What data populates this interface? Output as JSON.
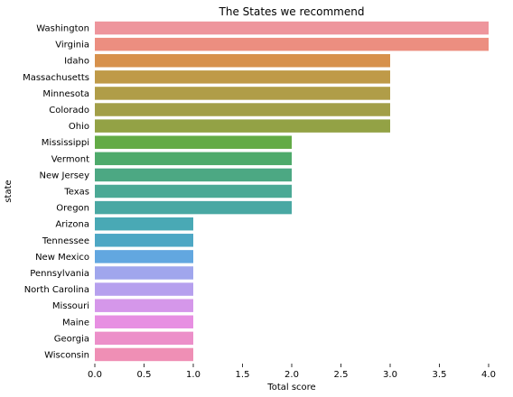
{
  "chart_data": {
    "type": "bar",
    "orientation": "horizontal",
    "title": "The States we recommend",
    "xlabel": "Total score",
    "ylabel": "state",
    "xlim": [
      0.0,
      4.0
    ],
    "xticks": [
      "0.0",
      "0.5",
      "1.0",
      "1.5",
      "2.0",
      "2.5",
      "3.0",
      "3.5",
      "4.0"
    ],
    "grid": false,
    "legend": "none",
    "categories": [
      "Washington",
      "Virginia",
      "Idaho",
      "Massachusetts",
      "Minnesota",
      "Colorado",
      "Ohio",
      "Mississippi",
      "Vermont",
      "New Jersey",
      "Texas",
      "Oregon",
      "Arizona",
      "Tennessee",
      "New Mexico",
      "Pennsylvania",
      "North Carolina",
      "Missouri",
      "Maine",
      "Georgia",
      "Wisconsin"
    ],
    "values": [
      4,
      4,
      3,
      3,
      3,
      3,
      3,
      2,
      2,
      2,
      2,
      2,
      1,
      1,
      1,
      1,
      1,
      1,
      1,
      1,
      1
    ],
    "colors": [
      "#ee959c",
      "#ec8e80",
      "#d7914c",
      "#bf9a48",
      "#b09d48",
      "#a29f48",
      "#93a245",
      "#63ab46",
      "#4eaa6b",
      "#4ca883",
      "#4ba995",
      "#49a8a3",
      "#49a9b5",
      "#4da7c4",
      "#62a7e0",
      "#a0a6ed",
      "#b6a0ee",
      "#d597ea",
      "#e78fe2",
      "#ec8fc9",
      "#ef8fb5"
    ]
  }
}
